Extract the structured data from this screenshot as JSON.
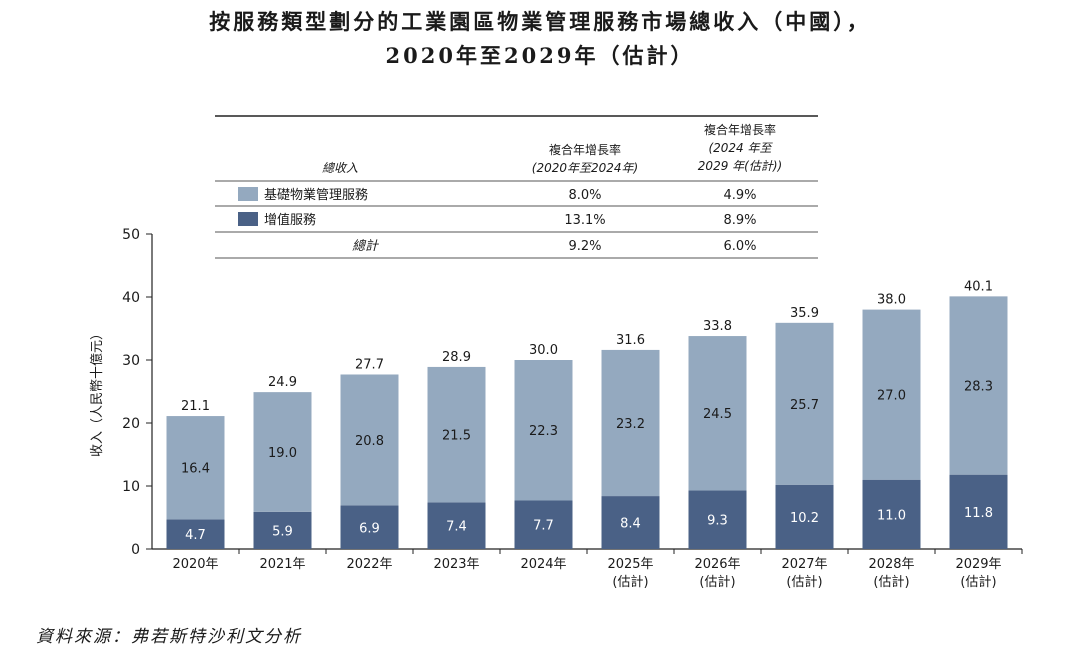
{
  "title_line1": "按服務類型劃分的工業園區物業管理服務市場總收入（中國），",
  "title_line2": "2020年至2029年（估計）",
  "source": "資料來源：弗若斯特沙利文分析",
  "colors": {
    "basic": "#94a9bf",
    "value_added": "#4a6186",
    "axis": "#222222"
  },
  "table": {
    "header_total": "總收入",
    "header_cagr1": [
      "複合年增長率",
      "(2020年至2024年)"
    ],
    "header_cagr2": [
      "複合年增長率",
      "(2024 年至",
      "2029 年(估計))"
    ],
    "rows": [
      {
        "label": "基礎物業管理服務",
        "cagr1": "8.0%",
        "cagr2": "4.9%",
        "swatch": "basic"
      },
      {
        "label": "增值服務",
        "cagr1": "13.1%",
        "cagr2": "8.9%",
        "swatch": "value_added"
      },
      {
        "label": "總計",
        "cagr1": "9.2%",
        "cagr2": "6.0%",
        "swatch": ""
      }
    ]
  },
  "chart_data": {
    "type": "bar",
    "stacked": true,
    "title": "按服務類型劃分的工業園區物業管理服務市場總收入（中國），2020年至2029年（估計）",
    "ylabel": "收入（人民幣十億元）",
    "ylim": [
      0,
      50
    ],
    "yticks": [
      0,
      10,
      20,
      30,
      40,
      50
    ],
    "categories": [
      "2020年",
      "2021年",
      "2022年",
      "2023年",
      "2024年",
      "2025年",
      "2026年",
      "2027年",
      "2028年",
      "2029年"
    ],
    "category_sublabels": [
      "",
      "",
      "",
      "",
      "",
      "(估計)",
      "(估計)",
      "(估計)",
      "(估計)",
      "(估計)"
    ],
    "series": [
      {
        "name": "增值服務",
        "values": [
          4.7,
          5.9,
          6.9,
          7.4,
          7.7,
          8.4,
          9.3,
          10.2,
          11.0,
          11.8
        ]
      },
      {
        "name": "基礎物業管理服務",
        "values": [
          16.4,
          19.0,
          20.8,
          21.5,
          22.3,
          23.2,
          24.5,
          25.7,
          27.0,
          28.3
        ]
      }
    ],
    "totals": [
      "21.1",
      "24.9",
      "27.7",
      "28.9",
      "30.0",
      "31.6",
      "33.8",
      "35.9",
      "38.0",
      "40.1"
    ],
    "value_labels": [
      [
        "4.7",
        "5.9",
        "6.9",
        "7.4",
        "7.7",
        "8.4",
        "9.3",
        "10.2",
        "11.0",
        "11.8"
      ],
      [
        "16.4",
        "19.0",
        "20.8",
        "21.5",
        "22.3",
        "23.2",
        "24.5",
        "25.7",
        "27.0",
        "28.3"
      ]
    ]
  }
}
